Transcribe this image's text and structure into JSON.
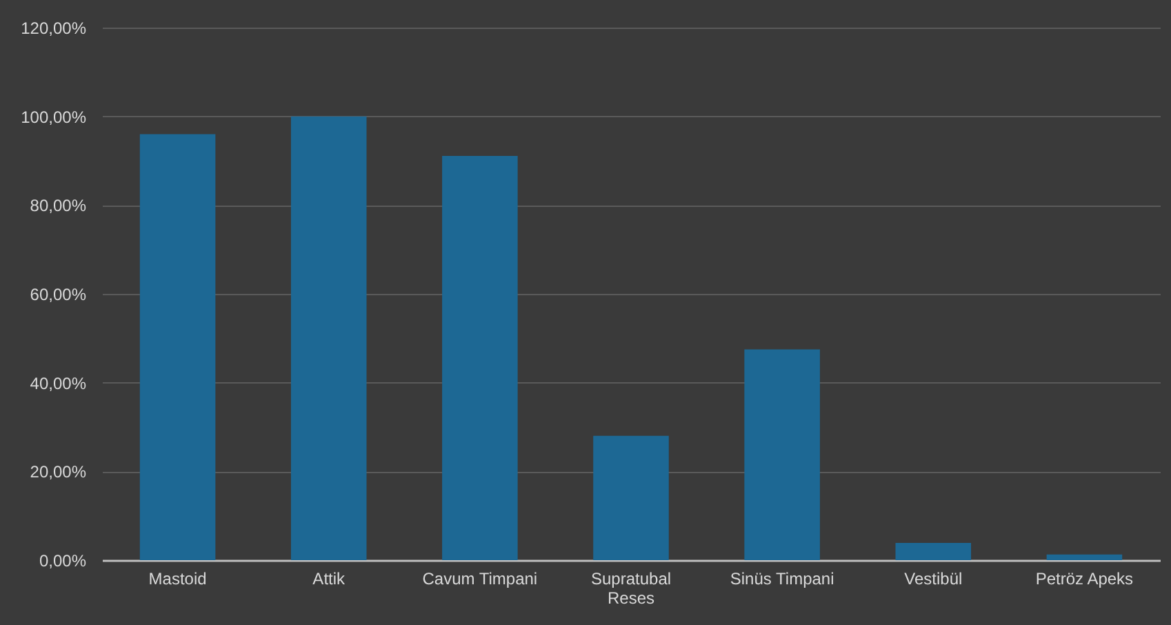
{
  "chart_data": {
    "type": "bar",
    "categories": [
      "Mastoid",
      "Attik",
      "Cavum Timpani",
      "Supratubal Reses",
      "Sinüs Timpani",
      "Vestibül",
      "Petröz Apeks"
    ],
    "values": [
      96.0,
      100.0,
      91.1,
      28.0,
      47.5,
      3.9,
      1.3
    ],
    "color": "#1d6894",
    "ylim": [
      0,
      120
    ],
    "yticks": [
      {
        "value": 0,
        "label": "0,00%"
      },
      {
        "value": 20,
        "label": "20,00%"
      },
      {
        "value": 40,
        "label": "40,00%"
      },
      {
        "value": 60,
        "label": "60,00%"
      },
      {
        "value": 80,
        "label": "80,00%"
      },
      {
        "value": 100,
        "label": "100,00%"
      },
      {
        "value": 120,
        "label": "120,00%"
      }
    ],
    "grid": "y"
  }
}
